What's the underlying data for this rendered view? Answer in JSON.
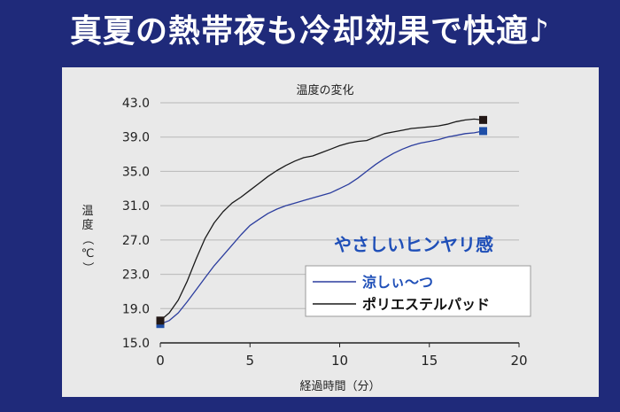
{
  "banner": {
    "title": "真夏の熱帯夜も冷却効果で快適♪"
  },
  "chart_data": {
    "type": "line",
    "title": "温度の変化",
    "xlabel": "経過時間（分）",
    "ylabel": "温度（℃）",
    "xlim": [
      0,
      20
    ],
    "ylim": [
      15.0,
      43.0
    ],
    "x_ticks": [
      "0",
      "5",
      "10",
      "15",
      "20"
    ],
    "y_ticks": [
      "15.0",
      "19.0",
      "23.0",
      "27.0",
      "31.0",
      "35.0",
      "39.0",
      "43.0"
    ],
    "grid": true,
    "legend_position": "bottom-right",
    "annotation": "やさしいヒンヤリ感",
    "series": [
      {
        "name": "涼しぃ〜つ",
        "color": "#2b3d9e",
        "marker_color": "#1f4fa8",
        "x": [
          0,
          0.5,
          1,
          1.5,
          2,
          2.5,
          3,
          3.5,
          4,
          4.5,
          5,
          5.5,
          6,
          6.5,
          7,
          7.5,
          8,
          8.5,
          9,
          9.5,
          10,
          10.5,
          11,
          11.5,
          12,
          12.5,
          13,
          13.5,
          14,
          14.5,
          15,
          15.5,
          16,
          16.5,
          17,
          17.5,
          18
        ],
        "values": [
          17.2,
          17.6,
          18.5,
          19.8,
          21.2,
          22.6,
          24.0,
          25.2,
          26.4,
          27.6,
          28.7,
          29.4,
          30.1,
          30.6,
          31.0,
          31.3,
          31.6,
          31.9,
          32.2,
          32.5,
          33.0,
          33.5,
          34.2,
          35.0,
          35.8,
          36.5,
          37.1,
          37.6,
          38.0,
          38.3,
          38.5,
          38.7,
          39.0,
          39.2,
          39.4,
          39.5,
          39.7
        ]
      },
      {
        "name": "ポリエステルパッド",
        "color": "#1a1a1a",
        "marker_color": "#231816",
        "x": [
          0,
          0.5,
          1,
          1.5,
          2,
          2.5,
          3,
          3.5,
          4,
          4.5,
          5,
          5.5,
          6,
          6.5,
          7,
          7.5,
          8,
          8.5,
          9,
          9.5,
          10,
          10.5,
          11,
          11.5,
          12,
          12.5,
          13,
          13.5,
          14,
          14.5,
          15,
          15.5,
          16,
          16.5,
          17,
          17.5,
          18
        ],
        "values": [
          17.6,
          18.5,
          20.0,
          22.2,
          24.8,
          27.2,
          29.0,
          30.3,
          31.3,
          32.0,
          32.8,
          33.6,
          34.4,
          35.1,
          35.7,
          36.2,
          36.6,
          36.8,
          37.2,
          37.6,
          38.0,
          38.3,
          38.5,
          38.6,
          39.0,
          39.4,
          39.6,
          39.8,
          40.0,
          40.1,
          40.2,
          40.3,
          40.5,
          40.8,
          41.0,
          41.1,
          41.0
        ]
      }
    ]
  }
}
